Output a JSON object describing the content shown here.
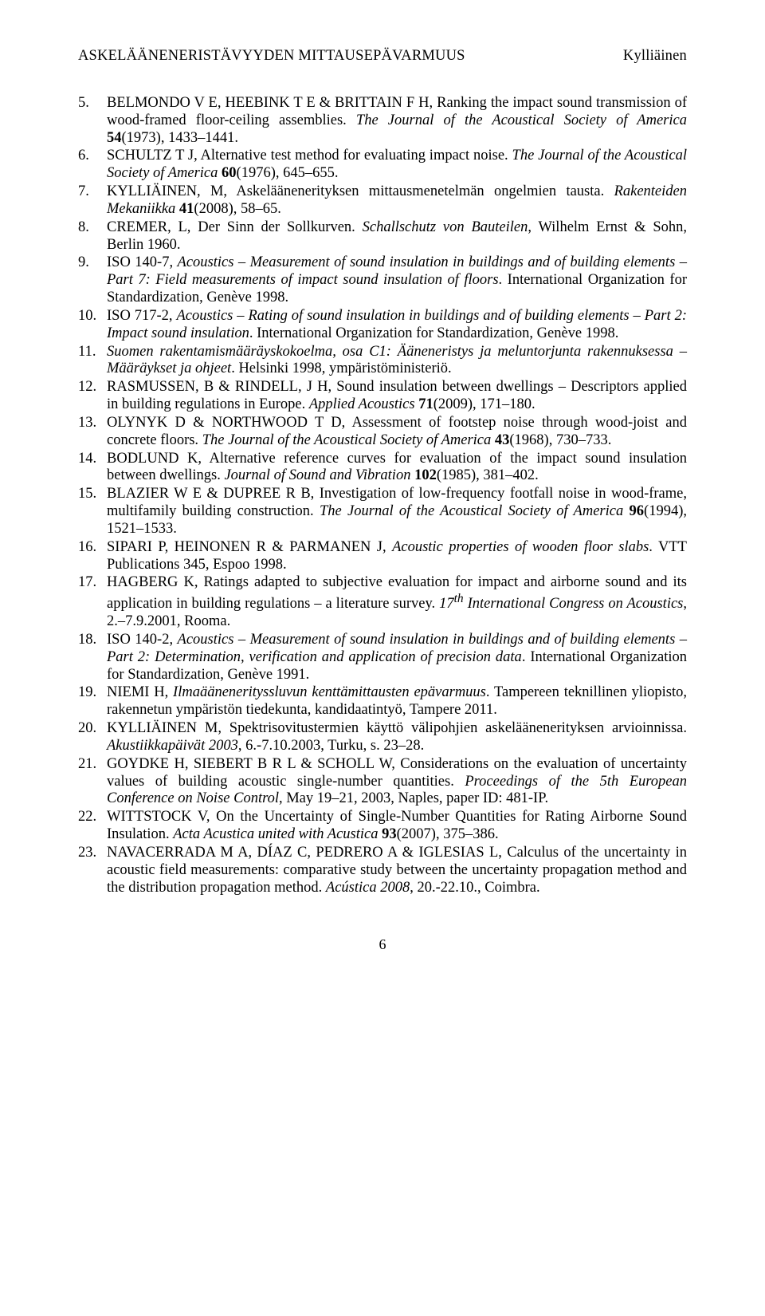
{
  "header": {
    "left": "ASKELÄÄNENERISTÄVYYDEN MITTAUSEPÄVARMUUS",
    "right": "Kylliäinen"
  },
  "references": {
    "5": "BELMONDO V E, HEEBINK T E & BRITTAIN F H, Ranking the impact sound transmission of wood-framed floor-ceiling assemblies. <i>The Journal of the Acoustical Society of America</i> <b>54</b>(1973), 1433–1441.",
    "6": "SCHULTZ T J, Alternative test method for evaluating impact noise. <i>The Journal of the Acoustical Society of America</i> <b>60</b>(1976), 645–655.",
    "7": "KYLLIÄINEN, M, Askeläänenerityksen mittausmenetelmän ongelmien tausta. <i>Rakenteiden Mekaniikka</i> <b>41</b>(2008), 58–65.",
    "8": "CREMER, L, Der Sinn der Sollkurven. <i>Schallschutz von Bauteilen</i>, Wilhelm Ernst & Sohn, Berlin 1960.",
    "9": "ISO 140-7, <i>Acoustics – Measurement of sound insulation in buildings and of building elements – Part 7: Field measurements of impact sound insulation of floors</i>. International Organization for Standardization, Genève 1998.",
    "10": "ISO 717-2, <i>Acoustics – Rating of sound insulation in buildings and of building elements – Part 2: Impact sound insulation</i>. International Organization for Standardization, Genève 1998.",
    "11": "<i>Suomen rakentamismääräyskokoelma, osa C1: Ääneneristys ja meluntorjunta rakennuksessa – Määräykset ja ohjeet</i>. Helsinki 1998, ympäristöministeriö.",
    "12": "RASMUSSEN, B & RINDELL, J H, Sound insulation between dwellings – Descriptors applied in building regulations in Europe. <i>Applied Acoustics</i> <b>71</b>(2009), 171–180.",
    "13": "OLYNYK D & NORTHWOOD T D, Assessment of footstep noise through wood-joist and concrete floors. <i>The Journal of the Acoustical Society of America</i> <b>43</b>(1968), 730–733.",
    "14": "BODLUND K, Alternative reference curves for evaluation of the impact sound insulation between dwellings. <i>Journal of Sound and Vibration</i> <b>102</b>(1985), 381–402.",
    "15": "BLAZIER W E & DUPREE R B, Investigation of low-frequency footfall noise in wood-frame, multifamily building construction. <i>The Journal of the Acoustical Society of America</i> <b>96</b>(1994), 1521–1533.",
    "16": "SIPARI P, HEINONEN R & PARMANEN J, <i>Acoustic properties of wooden floor slabs</i>. VTT Publications 345, Espoo 1998.",
    "17": "HAGBERG K, Ratings adapted to subjective evaluation for impact and airborne sound and its application in building regulations – a literature survey. <i>17<sup>th</sup> International Congress on Acoustics</i>, 2.–7.9.2001, Rooma.",
    "18": "ISO 140-2, <i>Acoustics – Measurement of sound insulation in buildings and of building elements – Part 2: Determination, verification and application of precision data</i>. International Organization for Standardization, Genève 1991.",
    "19": "NIEMI H, <i>Ilmaäänenerityssluvun kenttämittausten epävarmuus</i>. Tampereen teknillinen yliopisto, rakennetun ympäristön tiedekunta, kandidaatintyö, Tampere 2011.",
    "20": "KYLLIÄINEN M, Spektrisovitustermien käyttö välipohjien askeläänenerityksen arvioinnissa. <i>Akustiikkapäivät 2003</i>, 6.-7.10.2003, Turku, s. 23–28.",
    "21": "GOYDKE H, SIEBERT B R L & SCHOLL W, Considerations on the evaluation of uncertainty values of building acoustic single-number quantities. <i>Proceedings of the 5th European Conference on Noise Control</i>, May 19–21, 2003, Naples, paper ID: 481-IP.",
    "22": "WITTSTOCK V, On the Uncertainty of Single-Number Quantities for Rating Airborne Sound Insulation. <i>Acta Acustica united with Acustica</i> <b>93</b>(2007), 375–386.",
    "23": "NAVACERRADA M A, DÍAZ C, PEDRERO A & IGLESIAS L, Calculus of the uncertainty in acoustic field measurements: comparative study between the uncertainty propagation method and the distribution propagation method. <i>Acústica 2008</i>, 20.-22.10., Coimbra."
  },
  "page_number": "6"
}
